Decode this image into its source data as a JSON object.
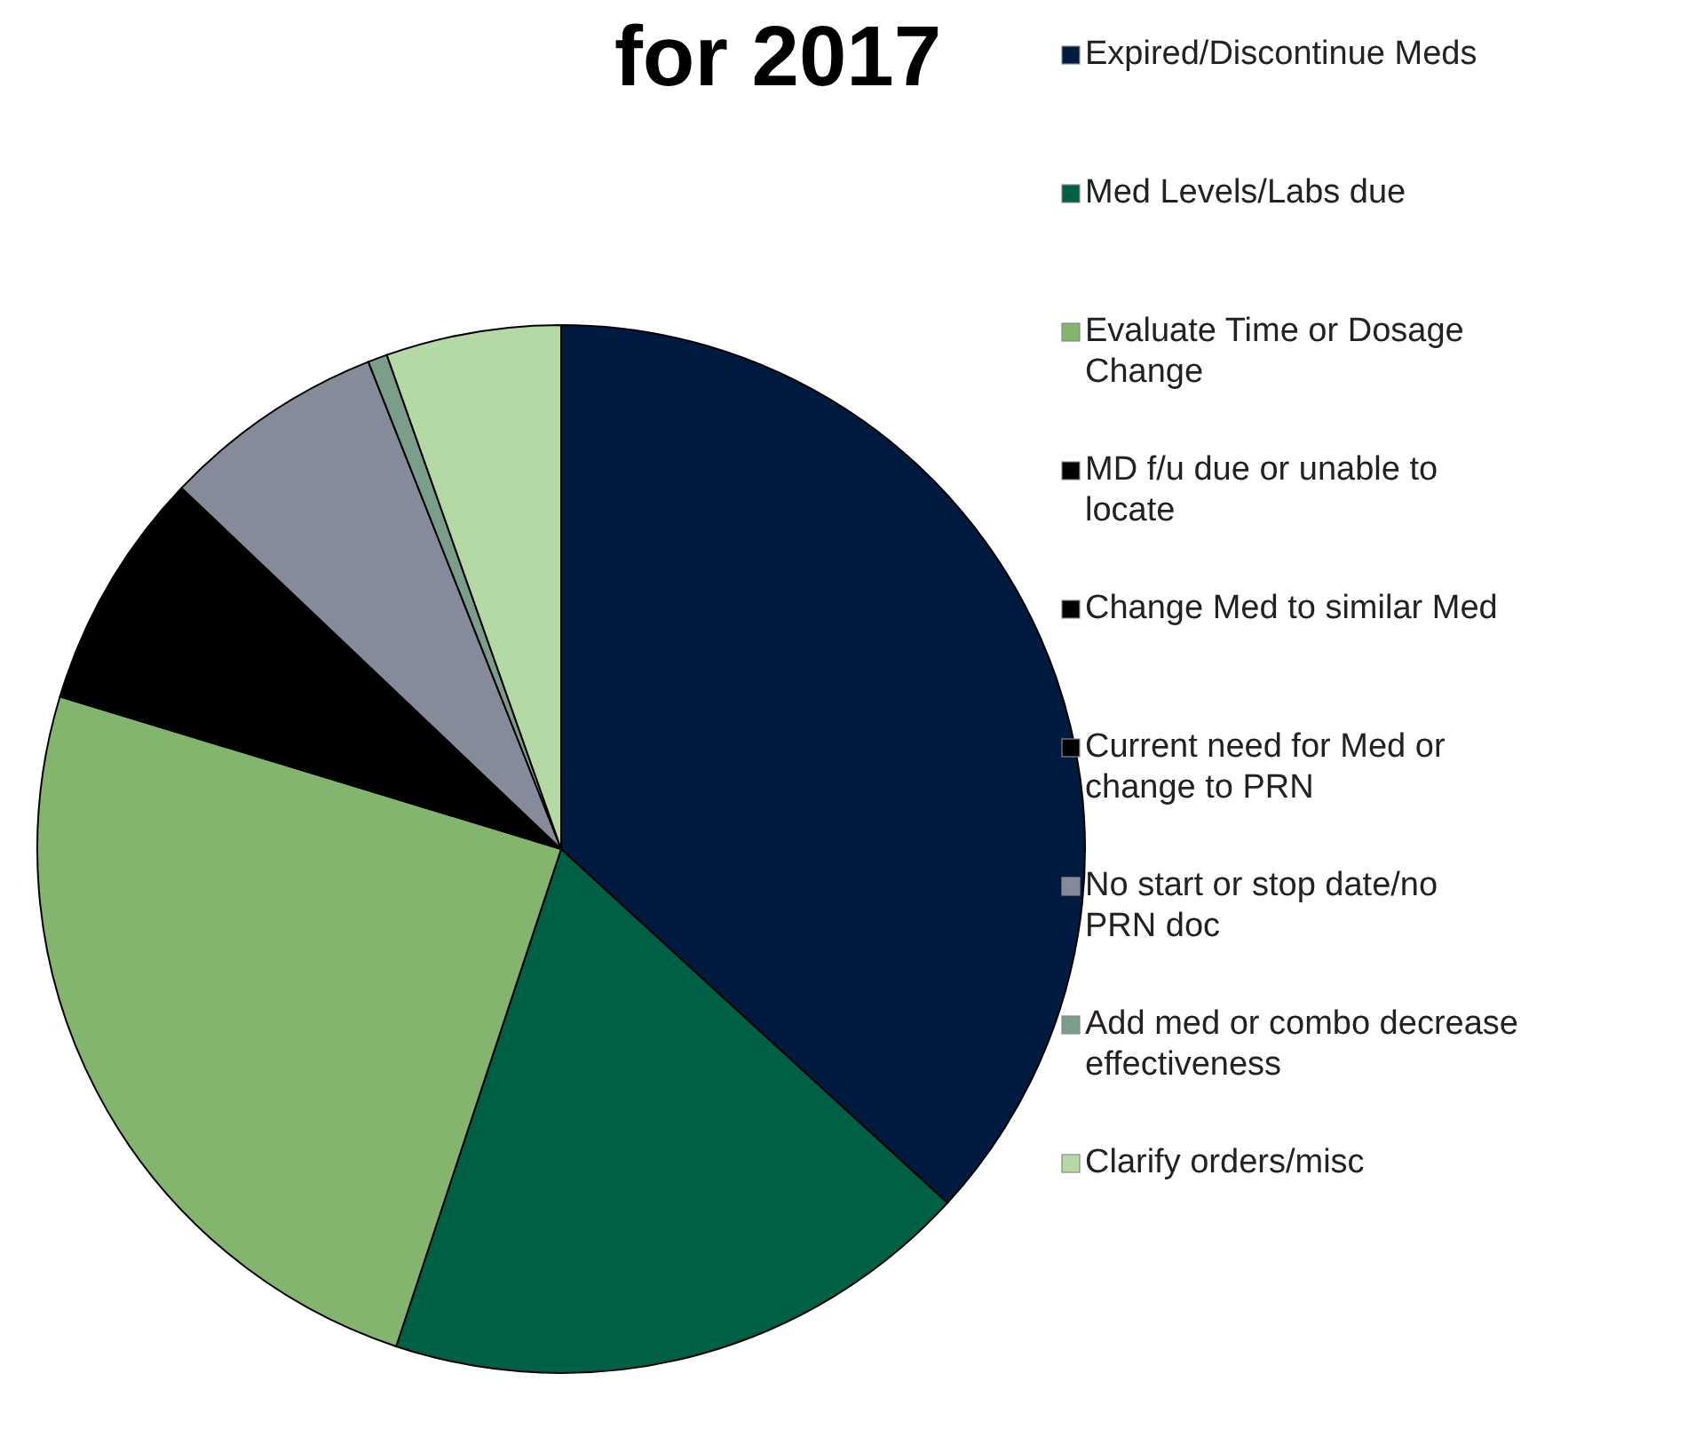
{
  "chart_data": {
    "type": "pie",
    "title": "for 2017",
    "legend": "right",
    "categories": [
      "Expired/Discontinue Meds",
      "Med Levels/Labs due",
      "Evaluate Time or Dosage Change",
      "MD f/u due or unable to locate",
      "Change Med to similar Med",
      "Current need for Med or change to PRN",
      "No start or stop date/no PRN doc",
      "Add med or combo decrease effectiveness",
      "Clarify orders/misc"
    ],
    "values": [
      36.8,
      18.3,
      24.6,
      7.4,
      0,
      0,
      6.9,
      0.6,
      5.4
    ],
    "colors": [
      "#001a40",
      "#006045",
      "#84b56e",
      "#000000",
      "#000000",
      "#000000",
      "#868b99",
      "#7a9e8a",
      "#b5d9a5"
    ]
  }
}
